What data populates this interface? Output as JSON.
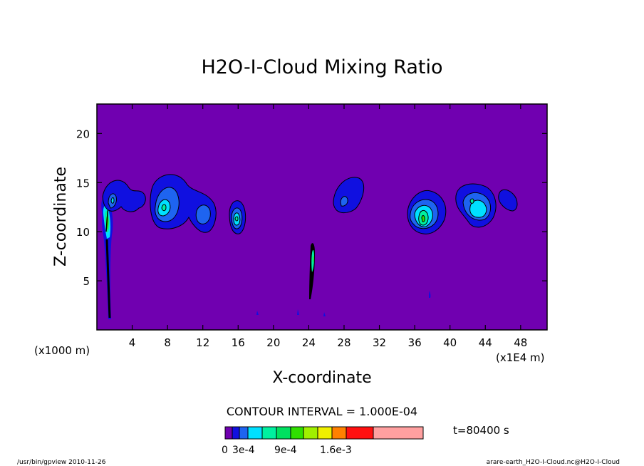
{
  "chart_data": {
    "type": "contour",
    "title": "H2O-I-Cloud Mixing Ratio",
    "xlabel": "X-coordinate",
    "ylabel": "Z-coordinate",
    "z_unit_label": "(x1000 m)",
    "x_unit_label": "(x1E4 m)",
    "xlim": [
      0,
      51
    ],
    "ylim": [
      0,
      23
    ],
    "x_ticks": [
      4,
      8,
      12,
      16,
      20,
      24,
      28,
      32,
      36,
      40,
      44,
      48
    ],
    "x_tick_labels": [
      "4",
      "8",
      "12",
      "16",
      "20",
      "24",
      "28",
      "32",
      "36",
      "40",
      "44",
      "48"
    ],
    "y_ticks": [
      5,
      10,
      15,
      20
    ],
    "y_tick_labels": [
      "5",
      "10",
      "15",
      "20"
    ],
    "background_color": "#7000b0",
    "contour_interval_text": "CONTOUR INTERVAL = 1.000E-04",
    "time_text": "t=80400 s",
    "colorbar": {
      "colors": [
        "#7000b0",
        "#1010e0",
        "#1e64f0",
        "#00e0ff",
        "#00f0a0",
        "#00e060",
        "#30e000",
        "#a0f000",
        "#f0f000",
        "#ff8000",
        "#ff1010",
        "#ffa0a0"
      ],
      "labels": [
        "0",
        "3e-4",
        "9e-4",
        "1.6e-3"
      ]
    },
    "cloud_cells": [
      {
        "x": 1.2,
        "z": 10.8,
        "peak_level": 5
      },
      {
        "x": 3.2,
        "z": 13.8,
        "peak_level": 2
      },
      {
        "x": 7.8,
        "z": 12.4,
        "peak_level": 4
      },
      {
        "x": 12.0,
        "z": 12.0,
        "peak_level": 2
      },
      {
        "x": 16.0,
        "z": 11.2,
        "peak_level": 4
      },
      {
        "x": 24.5,
        "z": 6.5,
        "peak_level": 3
      },
      {
        "x": 28.0,
        "z": 13.5,
        "peak_level": 2
      },
      {
        "x": 37.2,
        "z": 11.5,
        "peak_level": 5
      },
      {
        "x": 43.0,
        "z": 12.5,
        "peak_level": 4
      },
      {
        "x": 46.5,
        "z": 13.0,
        "peak_level": 1
      }
    ]
  },
  "footer": {
    "left": "/usr/bin/gpview   2010-11-26",
    "right": "arare-earth_H2O-I-Cloud.nc@H2O-I-Cloud"
  }
}
